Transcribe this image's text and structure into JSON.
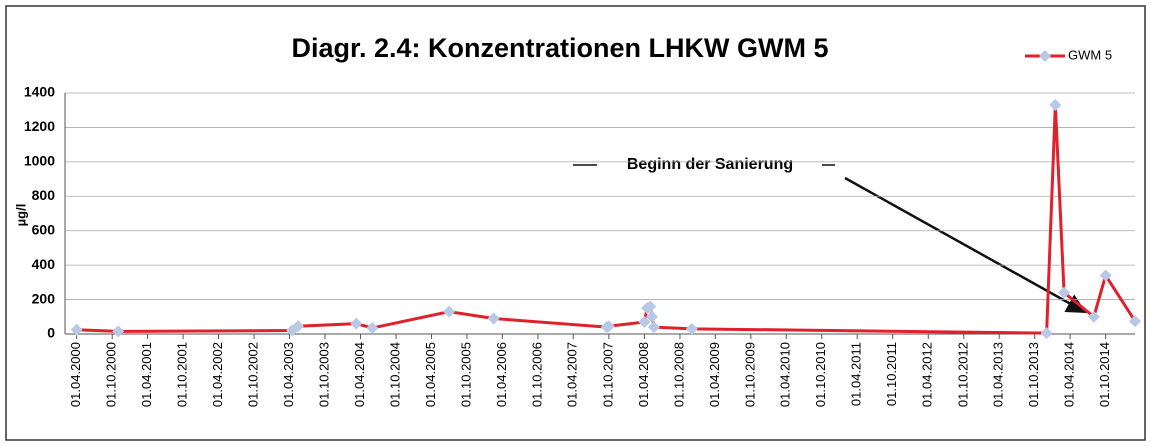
{
  "chart_data": {
    "type": "line",
    "title": "Diagr. 2.4: Konzentrationen LHKW GWM 5",
    "y_label": "µg/l",
    "annotation": "Beginn der Sanierung",
    "x": [
      "01.04.2000",
      "01.11.2000",
      "15.04.2003",
      "15.05.2003",
      "10.03.2004",
      "01.06.2004",
      "01.07.2005",
      "15.02.2006",
      "20.09.2007",
      "01.10.2007",
      "01.04.2008",
      "15.04.2008",
      "01.05.2008",
      "10.05.2008",
      "20.05.2008",
      "01.12.2008",
      "01.12.2013",
      "15.01.2014",
      "01.03.2014",
      "01.08.2014",
      "01.10.2014",
      "01.03.2015"
    ],
    "series": [
      {
        "name": "GWM 5",
        "color": "#e0202a",
        "marker_color": "#b8c8e6",
        "values": [
          25,
          15,
          20,
          45,
          60,
          35,
          130,
          90,
          40,
          45,
          70,
          150,
          160,
          100,
          40,
          30,
          5,
          1330,
          240,
          100,
          340,
          75
        ]
      }
    ],
    "xlim": [
      "01.02.2000",
      "01.03.2015"
    ],
    "xticks": [
      "01.04.2000",
      "01.10.2000",
      "01.04.2001",
      "01.10.2001",
      "01.04.2002",
      "01.10.2002",
      "01.04.2003",
      "01.10.2003",
      "01.04.2004",
      "01.10.2004",
      "01.04.2005",
      "01.10.2005",
      "01.04.2006",
      "01.10.2006",
      "01.04.2007",
      "01.10.2007",
      "01.04.2008",
      "01.10.2008",
      "01.04.2009",
      "01.10.2009",
      "01.04.2010",
      "01.10.2010",
      "01.04.2011",
      "01.10.2011",
      "01.04.2012",
      "01.10.2012",
      "01.04.2013",
      "01.10.2013",
      "01.04.2014",
      "01.10.2014"
    ],
    "ylim": [
      0,
      1400
    ],
    "yticks": [
      0,
      200,
      400,
      600,
      800,
      1000,
      1200,
      1400
    ],
    "grid": true,
    "legend": "top-right"
  }
}
